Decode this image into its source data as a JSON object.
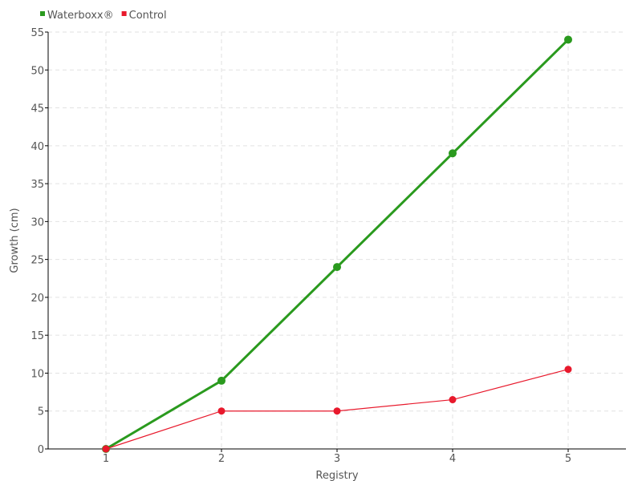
{
  "chart_data": {
    "type": "line",
    "title": "",
    "xlabel": "Registry",
    "ylabel": "Growth (cm)",
    "x": [
      1,
      2,
      3,
      4,
      5
    ],
    "xlim": [
      0.5,
      5.5
    ],
    "ylim": [
      0,
      55
    ],
    "yticks": [
      0,
      5,
      10,
      15,
      20,
      25,
      30,
      35,
      40,
      45,
      50,
      55
    ],
    "xticks": [
      1,
      2,
      3,
      4,
      5
    ],
    "grid": true,
    "legend_position": "top-left",
    "series": [
      {
        "name": "Waterboxx®",
        "color": "#2a9a1e",
        "values": [
          0,
          9,
          24,
          39,
          54
        ]
      },
      {
        "name": "Control",
        "color": "#e8192c",
        "values": [
          0,
          5,
          5,
          6.5,
          10.5
        ]
      }
    ]
  }
}
